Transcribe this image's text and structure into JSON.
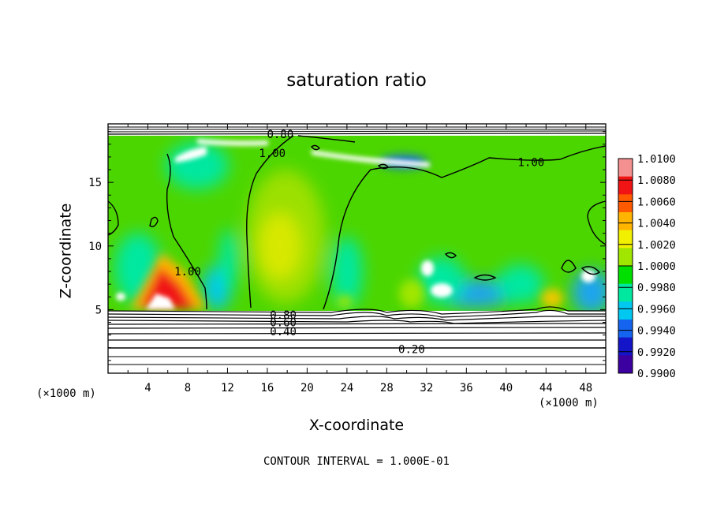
{
  "chart_data": {
    "type": "heatmap",
    "title": "saturation ratio",
    "xlabel": "X-coordinate",
    "ylabel": "Z-coordinate",
    "x_unit_left": "(×1000 m)",
    "x_unit_right": "(×1000 m)",
    "footer": "CONTOUR INTERVAL = 1.000E-01",
    "xlim": [
      0,
      50
    ],
    "ylim": [
      0,
      19.6
    ],
    "x_ticks": [
      4,
      8,
      12,
      16,
      20,
      24,
      28,
      32,
      36,
      40,
      44,
      48
    ],
    "y_ticks": [
      5,
      10,
      15
    ],
    "colorbar": {
      "levels": [
        "1.0100",
        "1.0080",
        "1.0060",
        "1.0040",
        "1.0020",
        "1.0000",
        "0.9980",
        "0.9960",
        "0.9940",
        "0.9920",
        "0.9900"
      ],
      "colors": [
        "#f59090",
        "#f01414",
        "#ff5a00",
        "#ffb400",
        "#f0f000",
        "#a0e600",
        "#00e000",
        "#00e8a0",
        "#00c8f0",
        "#1464f0",
        "#1414c8",
        "#3c00a0"
      ]
    },
    "contour_labels": [
      {
        "text": "0.80",
        "x": 17.3,
        "y": 18.8
      },
      {
        "text": "1.00",
        "x": 16.5,
        "y": 17.3
      },
      {
        "text": "1.00",
        "x": 42.5,
        "y": 16.6
      },
      {
        "text": "1.00",
        "x": 8.0,
        "y": 8.0
      },
      {
        "text": "0.80",
        "x": 17.6,
        "y": 4.6
      },
      {
        "text": "0.60",
        "x": 17.6,
        "y": 4.0
      },
      {
        "text": "0.40",
        "x": 17.6,
        "y": 3.3
      },
      {
        "text": "0.20",
        "x": 30.5,
        "y": 1.9
      }
    ]
  }
}
